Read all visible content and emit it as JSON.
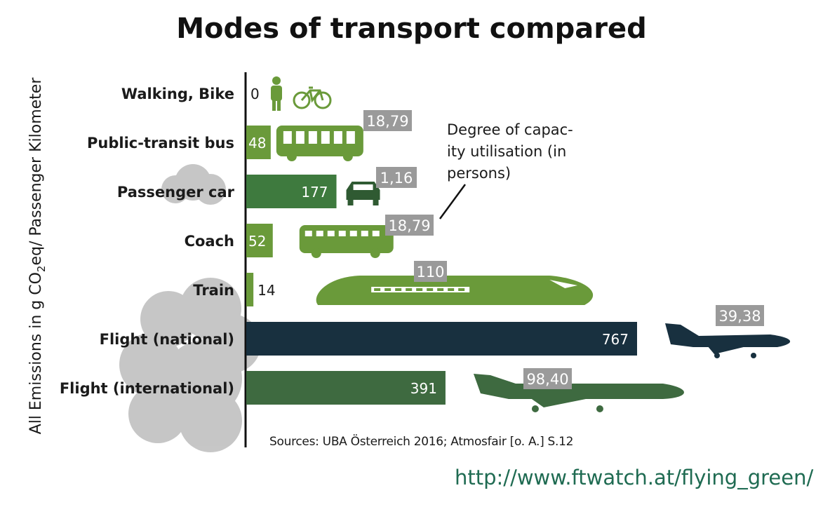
{
  "chart_data": {
    "type": "bar",
    "orientation": "horizontal",
    "title": "Modes of transport compared",
    "ylabel_parts": [
      "All Emissions in g CO",
      "2",
      "eq/ Passenger Kilometer"
    ],
    "categories": [
      "Walking, Bike",
      "Public-transit bus",
      "Passenger car",
      "Coach",
      "Train",
      "Flight (national)",
      "Flight (international)"
    ],
    "values": [
      0,
      48,
      177,
      52,
      14,
      767,
      391
    ],
    "value_labels": [
      "0",
      "48",
      "177",
      "52",
      "14",
      "767",
      "391"
    ],
    "capacity_utilisation": [
      "",
      "18,79",
      "1,16",
      "18,79",
      "110",
      "39,38",
      "98,40"
    ],
    "icons": [
      "pedestrian-bicycle-icon",
      "bus-icon",
      "car-icon",
      "coach-icon",
      "train-icon",
      "jet-plane-icon",
      "airliner-icon"
    ],
    "bar_colors": [
      "#6a9a3a",
      "#6a9a3a",
      "#3e7a3e",
      "#6a9a3a",
      "#6a9a3a",
      "#18303f",
      "#3e6a40"
    ],
    "annotation": [
      "Degree of capac-",
      "ity utilisation (in",
      "persons)"
    ],
    "xlim": [
      0,
      767
    ],
    "grid": false,
    "legend": "none"
  },
  "source": "Sources: UBA Österreich 2016; Atmosfair [o. A.] S.12",
  "url": "http://www.ftwatch.at/flying_green/"
}
